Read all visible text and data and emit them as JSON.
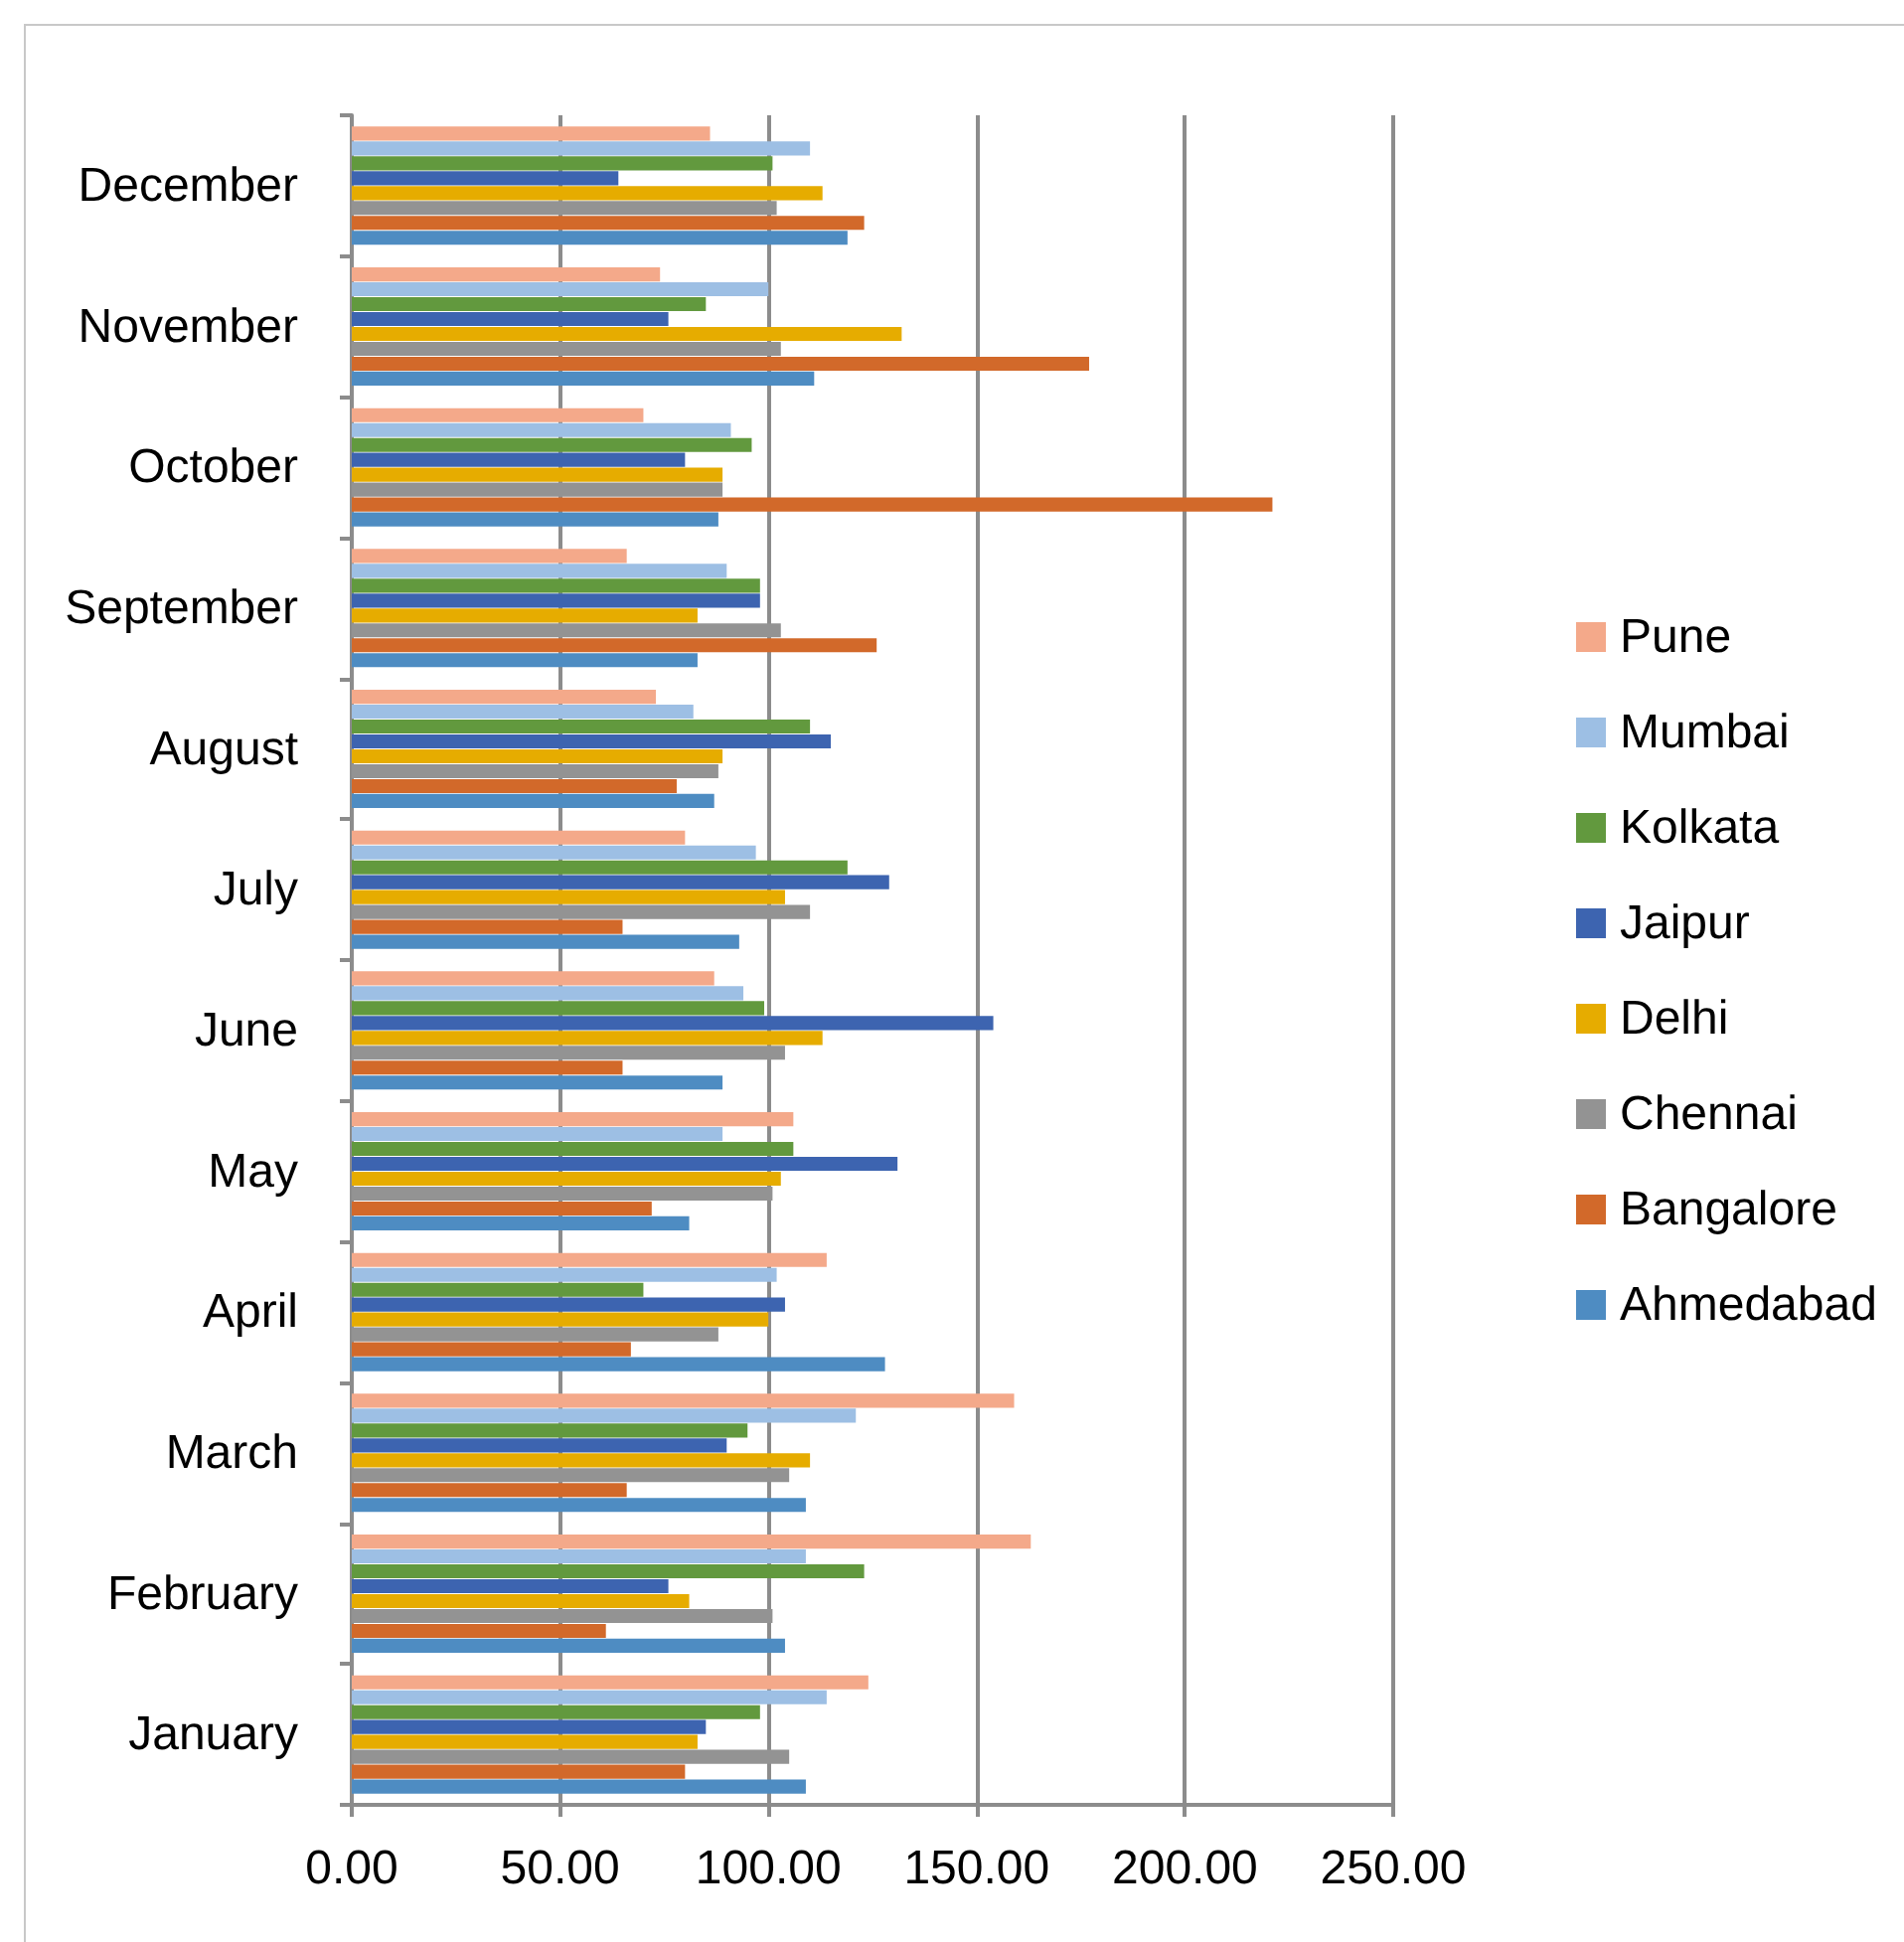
{
  "chart_data": {
    "type": "bar",
    "orientation": "horizontal",
    "legend": "right",
    "grid": "x",
    "categories": [
      "December",
      "November",
      "October",
      "September",
      "August",
      "July",
      "June",
      "May",
      "April",
      "March",
      "February",
      "January"
    ],
    "xlim": [
      0,
      250
    ],
    "xticks": [
      {
        "value": 0,
        "label": "0.00"
      },
      {
        "value": 50,
        "label": "50.00"
      },
      {
        "value": 100,
        "label": "100.00"
      },
      {
        "value": 150,
        "label": "150.00"
      },
      {
        "value": 200,
        "label": "200.00"
      },
      {
        "value": 250,
        "label": "250.00"
      }
    ],
    "series": [
      {
        "name": "Ahmedabad",
        "color": "#4e8cc2",
        "values": [
          119,
          111,
          88,
          83,
          87,
          93,
          89,
          81,
          128,
          109,
          104,
          109
        ]
      },
      {
        "name": "Bangalore",
        "color": "#d2692a",
        "values": [
          123,
          177,
          221,
          126,
          78,
          65,
          65,
          72,
          67,
          66,
          61,
          80
        ]
      },
      {
        "name": "Chennai",
        "color": "#939393",
        "values": [
          102,
          103,
          89,
          103,
          88,
          110,
          104,
          101,
          88,
          105,
          101,
          105
        ]
      },
      {
        "name": "Delhi",
        "color": "#e6ac00",
        "values": [
          113,
          132,
          89,
          83,
          89,
          104,
          113,
          103,
          100,
          110,
          81,
          83
        ]
      },
      {
        "name": "Jaipur",
        "color": "#3d64b0",
        "values": [
          64,
          76,
          80,
          98,
          115,
          129,
          154,
          131,
          104,
          90,
          76,
          85
        ]
      },
      {
        "name": "Kolkata",
        "color": "#62993e",
        "values": [
          101,
          85,
          96,
          98,
          110,
          119,
          99,
          106,
          70,
          95,
          123,
          98
        ]
      },
      {
        "name": "Mumbai",
        "color": "#9dbfe4",
        "values": [
          110,
          100,
          91,
          90,
          82,
          97,
          94,
          89,
          102,
          121,
          109,
          114
        ]
      },
      {
        "name": "Pune",
        "color": "#f4a98a",
        "values": [
          86,
          74,
          70,
          66,
          73,
          80,
          87,
          106,
          114,
          159,
          163,
          124
        ]
      }
    ]
  }
}
